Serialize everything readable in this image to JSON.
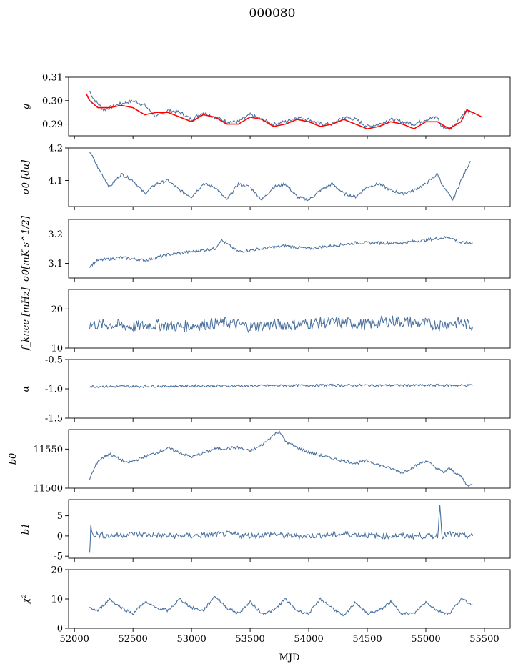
{
  "figure": {
    "title": "000080",
    "xlabel": "MJD",
    "x_ticks": [
      52000,
      52500,
      53000,
      53500,
      54000,
      54500,
      55000,
      55500
    ],
    "xlim": [
      51950,
      55720
    ]
  },
  "chart_data": [
    {
      "type": "line",
      "ylabel": "g",
      "ylim": [
        0.285,
        0.31
      ],
      "y_ticks": [
        0.29,
        0.3,
        0.31
      ],
      "series": [
        {
          "color": "#4c72a0",
          "x": [
            52130,
            52160,
            52250,
            52350,
            52500,
            52600,
            52700,
            52800,
            52900,
            53000,
            53100,
            53200,
            53300,
            53400,
            53500,
            53600,
            53700,
            53800,
            53900,
            54000,
            54100,
            54200,
            54300,
            54400,
            54500,
            54600,
            54700,
            54800,
            54900,
            55000,
            55100,
            55130,
            55200,
            55230,
            55280,
            55350,
            55400
          ],
          "y": [
            0.304,
            0.301,
            0.296,
            0.298,
            0.3,
            0.298,
            0.293,
            0.296,
            0.295,
            0.292,
            0.295,
            0.293,
            0.291,
            0.291,
            0.294,
            0.292,
            0.29,
            0.291,
            0.293,
            0.292,
            0.29,
            0.29,
            0.293,
            0.292,
            0.289,
            0.29,
            0.292,
            0.291,
            0.29,
            0.292,
            0.293,
            0.289,
            0.288,
            0.289,
            0.292,
            0.296,
            0.294
          ]
        },
        {
          "color": "#ff0000",
          "x": [
            52100,
            52130,
            52200,
            52300,
            52400,
            52500,
            52600,
            52700,
            52800,
            52900,
            53000,
            53100,
            53200,
            53300,
            53400,
            53500,
            53600,
            53700,
            53800,
            53900,
            54000,
            54100,
            54200,
            54300,
            54400,
            54500,
            54600,
            54700,
            54800,
            54900,
            55000,
            55100,
            55200,
            55300,
            55350,
            55400,
            55480
          ],
          "y": [
            0.303,
            0.3,
            0.297,
            0.297,
            0.298,
            0.297,
            0.294,
            0.295,
            0.295,
            0.293,
            0.291,
            0.294,
            0.293,
            0.29,
            0.29,
            0.293,
            0.292,
            0.289,
            0.29,
            0.292,
            0.291,
            0.289,
            0.29,
            0.292,
            0.29,
            0.288,
            0.289,
            0.291,
            0.29,
            0.288,
            0.291,
            0.291,
            0.288,
            0.291,
            0.296,
            0.295,
            0.293
          ]
        }
      ]
    },
    {
      "type": "line",
      "ylabel": "σ0 [du]",
      "ylim": [
        4.02,
        4.2
      ],
      "y_ticks": [
        4.1,
        4.2
      ],
      "series": [
        {
          "color": "#4c72a0",
          "x": [
            52130,
            52200,
            52300,
            52400,
            52500,
            52600,
            52700,
            52800,
            52900,
            53000,
            53100,
            53200,
            53300,
            53400,
            53500,
            53600,
            53700,
            53800,
            53900,
            54000,
            54100,
            54200,
            54300,
            54400,
            54500,
            54600,
            54700,
            54800,
            54900,
            55000,
            55100,
            55150,
            55230,
            55300,
            55380
          ],
          "y": [
            4.19,
            4.14,
            4.08,
            4.12,
            4.1,
            4.06,
            4.09,
            4.1,
            4.07,
            4.05,
            4.09,
            4.08,
            4.04,
            4.09,
            4.08,
            4.04,
            4.08,
            4.09,
            4.05,
            4.04,
            4.07,
            4.09,
            4.06,
            4.05,
            4.08,
            4.09,
            4.07,
            4.06,
            4.07,
            4.09,
            4.12,
            4.08,
            4.04,
            4.1,
            4.16
          ]
        }
      ]
    },
    {
      "type": "line",
      "ylabel": "σ0[mK s^1/2]",
      "ylim": [
        3.05,
        3.25
      ],
      "y_ticks": [
        3.1,
        3.2
      ],
      "series": [
        {
          "color": "#4c72a0",
          "x": [
            52130,
            52200,
            52400,
            52600,
            52800,
            53000,
            53200,
            53250,
            53400,
            53600,
            53800,
            54000,
            54200,
            54400,
            54600,
            54800,
            55000,
            55200,
            55300,
            55400
          ],
          "y": [
            3.09,
            3.11,
            3.12,
            3.11,
            3.13,
            3.14,
            3.15,
            3.18,
            3.14,
            3.15,
            3.16,
            3.15,
            3.16,
            3.17,
            3.17,
            3.17,
            3.18,
            3.19,
            3.17,
            3.17
          ]
        }
      ]
    },
    {
      "type": "line",
      "ylabel": "f_knee [mHz]",
      "ylim": [
        10,
        25
      ],
      "y_ticks": [
        10,
        20
      ],
      "series": [
        {
          "color": "#4c72a0",
          "x": [
            52130,
            52300,
            52500,
            52700,
            52900,
            53100,
            53300,
            53500,
            53700,
            53900,
            54100,
            54300,
            54500,
            54700,
            54900,
            55100,
            55300,
            55400
          ],
          "y": [
            16,
            16,
            15.5,
            16,
            15.5,
            16,
            16.5,
            15.5,
            16,
            16,
            16.5,
            16.5,
            16,
            17,
            16.5,
            16,
            16.5,
            15.5
          ]
        }
      ]
    },
    {
      "type": "line",
      "ylabel": "α",
      "ylim": [
        -1.5,
        -0.5
      ],
      "y_ticks": [
        -1.5,
        -1.0,
        -0.5
      ],
      "series": [
        {
          "color": "#4c72a0",
          "x": [
            52130,
            52500,
            53000,
            53500,
            54000,
            54500,
            55000,
            55400
          ],
          "y": [
            -0.96,
            -0.96,
            -0.95,
            -0.95,
            -0.94,
            -0.94,
            -0.94,
            -0.94
          ]
        }
      ]
    },
    {
      "type": "line",
      "ylabel": "b0",
      "ylim": [
        11500,
        11575
      ],
      "y_ticks": [
        11500,
        11550
      ],
      "series": [
        {
          "color": "#4c72a0",
          "x": [
            52130,
            52200,
            52300,
            52450,
            52600,
            52800,
            53000,
            53200,
            53400,
            53500,
            53600,
            53700,
            53750,
            53800,
            53900,
            54000,
            54200,
            54400,
            54500,
            54600,
            54800,
            55000,
            55150,
            55200,
            55300,
            55350,
            55400
          ],
          "y": [
            11512,
            11535,
            11544,
            11532,
            11540,
            11551,
            11540,
            11550,
            11552,
            11547,
            11555,
            11568,
            11573,
            11560,
            11552,
            11546,
            11538,
            11532,
            11535,
            11530,
            11520,
            11535,
            11520,
            11525,
            11515,
            11504,
            11504
          ]
        }
      ]
    },
    {
      "type": "line",
      "ylabel": "b1",
      "ylim": [
        -5.5,
        9
      ],
      "y_ticks": [
        -5,
        0,
        5
      ],
      "series": [
        {
          "color": "#4c72a0",
          "x": [
            52130,
            52140,
            52160,
            52300,
            52500,
            52800,
            53000,
            53300,
            53500,
            53700,
            53800,
            54000,
            54300,
            54600,
            54900,
            55100,
            55120,
            55140,
            55200,
            55300,
            55400
          ],
          "y": [
            -4.5,
            2.5,
            0.5,
            0,
            0.5,
            0,
            0,
            0.5,
            0,
            0.5,
            0,
            0,
            0.5,
            0,
            0,
            0,
            7.5,
            0,
            0.5,
            0,
            0
          ]
        }
      ]
    },
    {
      "type": "line",
      "ylabel": "χ²",
      "ylim": [
        0,
        20
      ],
      "y_ticks": [
        0,
        10,
        20
      ],
      "series": [
        {
          "color": "#4c72a0",
          "x": [
            52130,
            52200,
            52300,
            52400,
            52500,
            52600,
            52700,
            52800,
            52900,
            53000,
            53100,
            53200,
            53300,
            53400,
            53500,
            53600,
            53700,
            53800,
            53900,
            54000,
            54100,
            54200,
            54300,
            54400,
            54500,
            54600,
            54700,
            54800,
            54900,
            55000,
            55100,
            55200,
            55300,
            55400
          ],
          "y": [
            7,
            6,
            10,
            7,
            5,
            9,
            7,
            6,
            10,
            7,
            6,
            11,
            7,
            5,
            9,
            5,
            6,
            10,
            6,
            5,
            10,
            7,
            4,
            9,
            5,
            6,
            9,
            5,
            5,
            9,
            6,
            5,
            10,
            8
          ]
        }
      ]
    }
  ]
}
